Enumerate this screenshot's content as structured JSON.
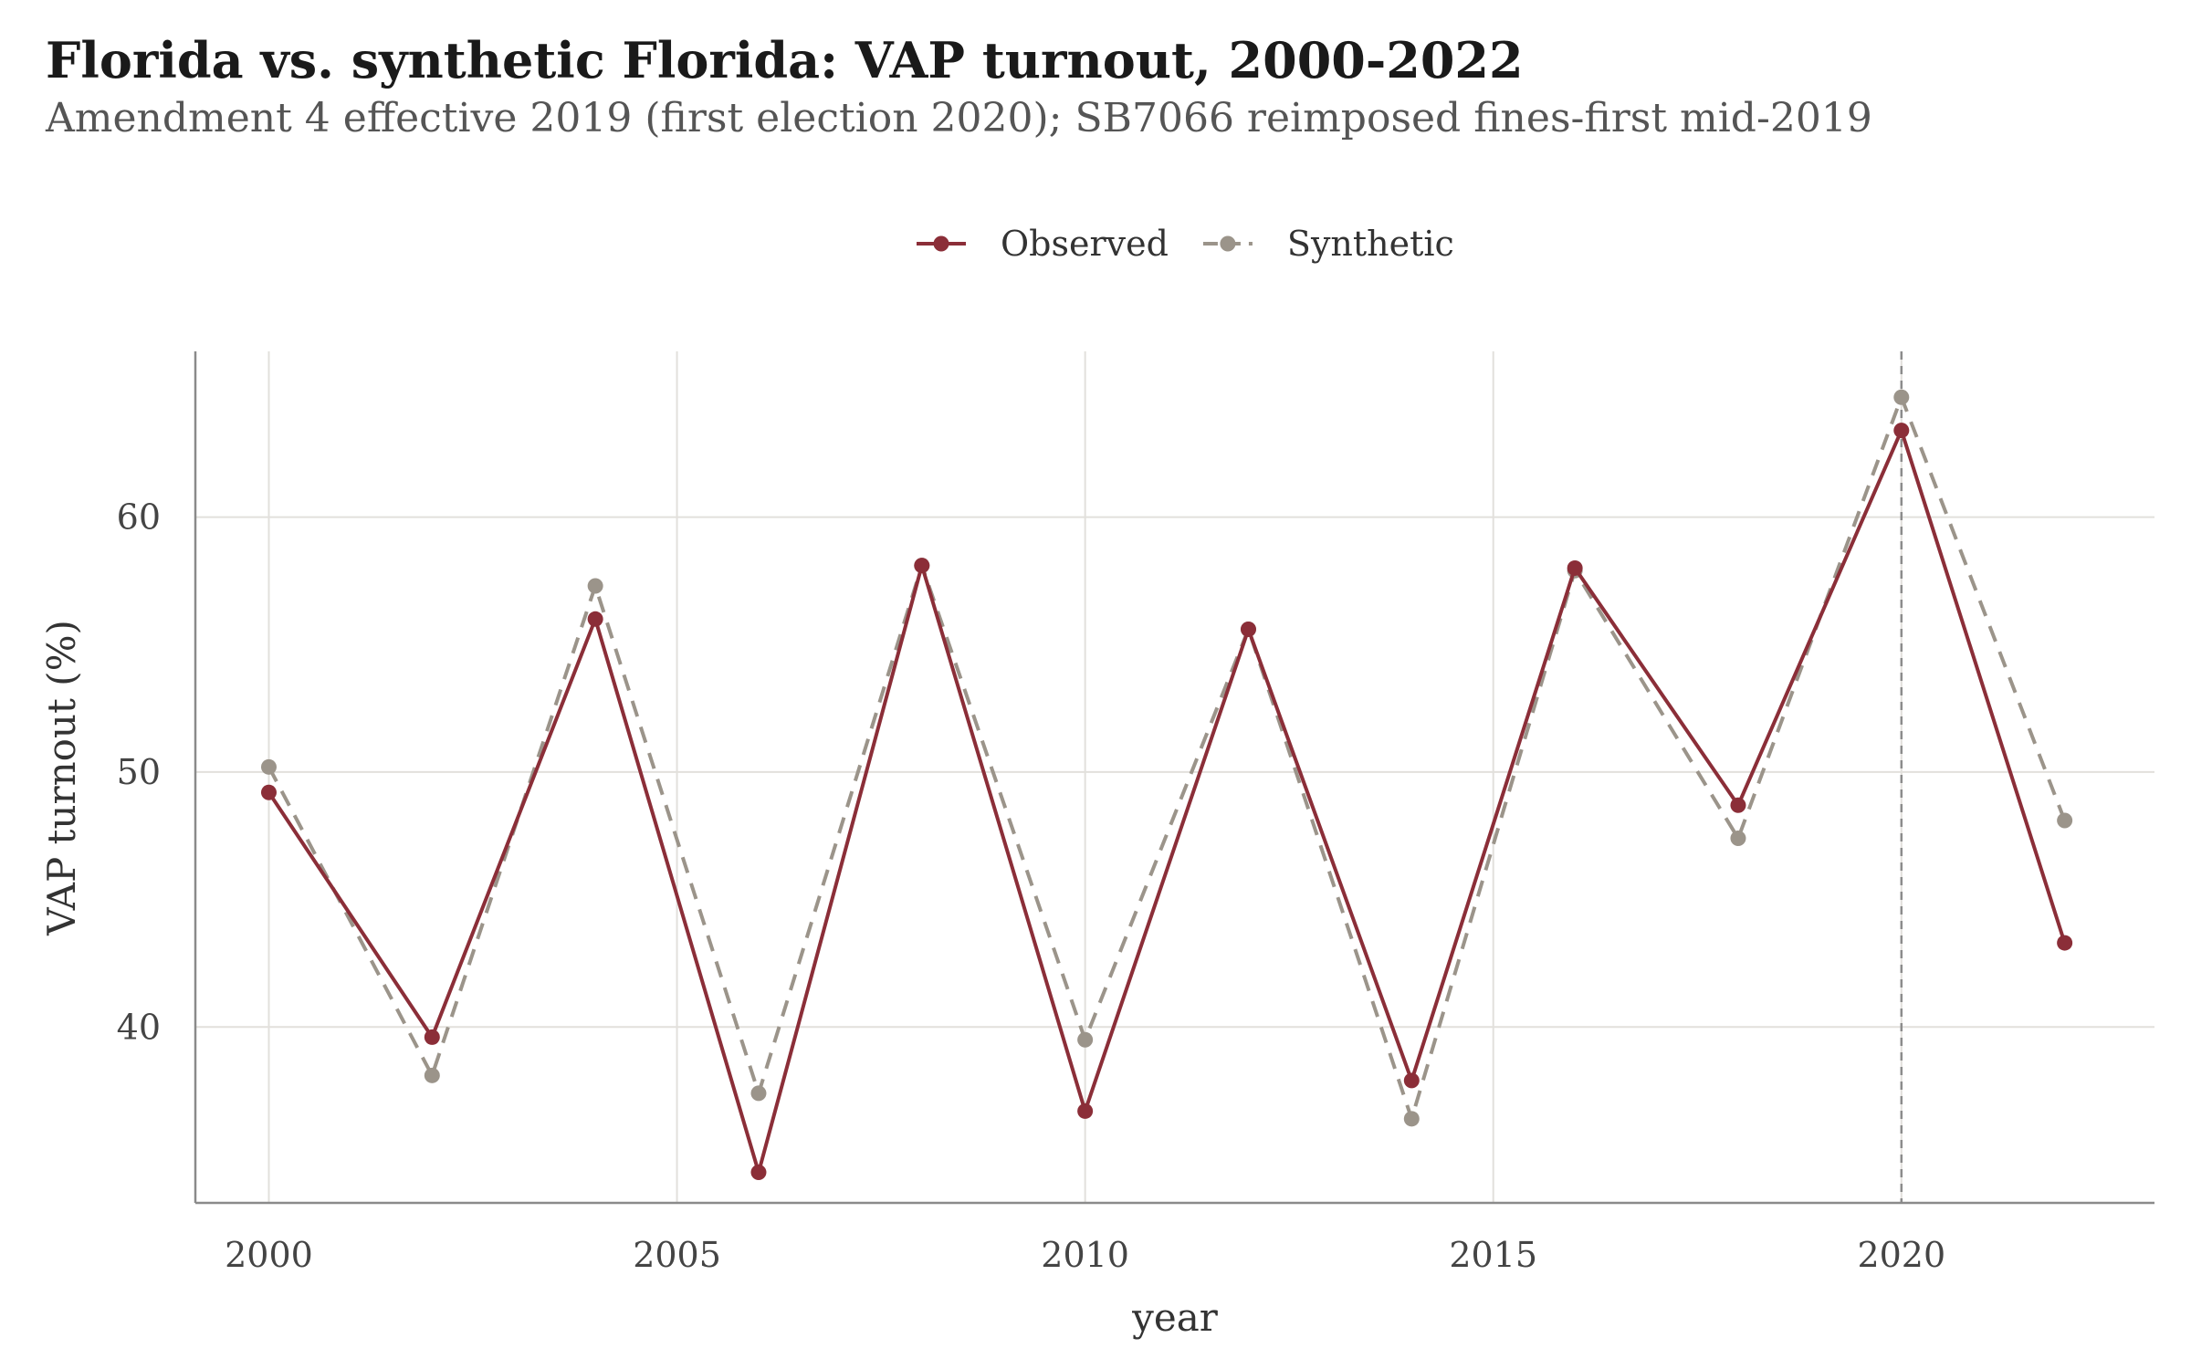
{
  "chart_data": {
    "type": "line",
    "title": "Florida vs. synthetic Florida: VAP turnout, 2000-2022",
    "subtitle": "Amendment 4 effective 2019 (first election 2020); SB7066 reimposed fines-first mid-2019",
    "xlabel": "year",
    "ylabel": "VAP turnout (%)",
    "x": [
      2000,
      2002,
      2004,
      2006,
      2008,
      2010,
      2012,
      2014,
      2016,
      2018,
      2020,
      2022
    ],
    "xlim": [
      1999.1,
      2023.1
    ],
    "ylim": [
      33.1,
      66.5
    ],
    "x_ticks": [
      2000,
      2005,
      2010,
      2015,
      2020
    ],
    "y_ticks": [
      40,
      50,
      60
    ],
    "grid": true,
    "legend_position": "top",
    "vline_x": 2020,
    "series": [
      {
        "name": "Observed",
        "color": "#8b2e38",
        "line_style": "solid",
        "values": [
          49.2,
          39.6,
          56.0,
          34.3,
          58.1,
          36.7,
          55.6,
          37.9,
          58.0,
          48.7,
          63.4,
          43.3
        ]
      },
      {
        "name": "Synthetic",
        "color": "#9b948a",
        "line_style": "dashed",
        "values": [
          50.2,
          38.1,
          57.3,
          37.4,
          58.1,
          39.5,
          55.6,
          36.4,
          57.9,
          47.4,
          64.7,
          48.1
        ]
      }
    ]
  }
}
